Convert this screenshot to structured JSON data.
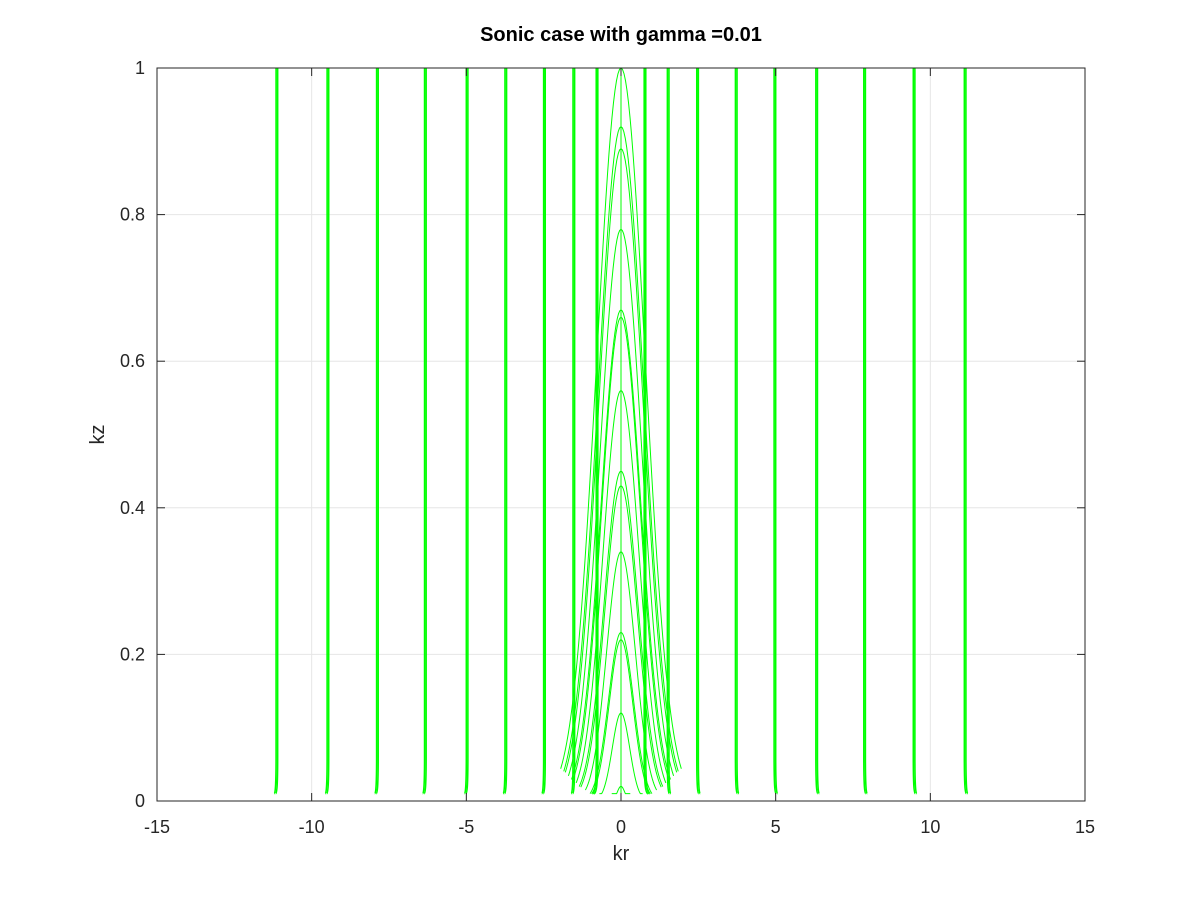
{
  "chart_data": {
    "type": "line",
    "title": "Sonic case with gamma =0.01",
    "xlabel": "kr",
    "ylabel": "kz",
    "xlim": [
      -15,
      15
    ],
    "ylim": [
      0,
      1
    ],
    "xticks": [
      -15,
      -10,
      -5,
      0,
      5,
      10,
      15
    ],
    "yticks": [
      0,
      0.2,
      0.4,
      0.6,
      0.8,
      1
    ],
    "xtick_labels": [
      "-15",
      "-10",
      "-5",
      "0",
      "5",
      "10",
      "15"
    ],
    "ytick_labels": [
      "0",
      "0.2",
      "0.4",
      "0.6",
      "0.8",
      "1"
    ],
    "grid": true,
    "line_color": "#00ff00",
    "series": [
      {
        "name": "near-vertical curves",
        "kz_range": [
          0.01,
          1
        ],
        "kr_positions": [
          -11.1,
          -9.45,
          -7.85,
          -6.3,
          -4.95,
          -3.7,
          -2.45,
          -1.5,
          -0.75,
          0.75,
          1.5,
          2.45,
          3.7,
          4.95,
          6.3,
          7.85,
          9.45,
          11.1
        ]
      },
      {
        "name": "arch curves",
        "center": 0,
        "peaks": [
          0.02,
          0.12,
          0.22,
          0.23,
          0.34,
          0.43,
          0.45,
          0.56,
          0.66,
          0.67,
          0.78,
          0.89,
          0.92,
          1.0
        ],
        "base_half_widths": [
          0.3,
          0.7,
          0.95,
          1.0,
          1.15,
          1.3,
          1.35,
          1.45,
          1.55,
          1.6,
          1.7,
          1.8,
          1.85,
          1.95
        ]
      }
    ]
  }
}
